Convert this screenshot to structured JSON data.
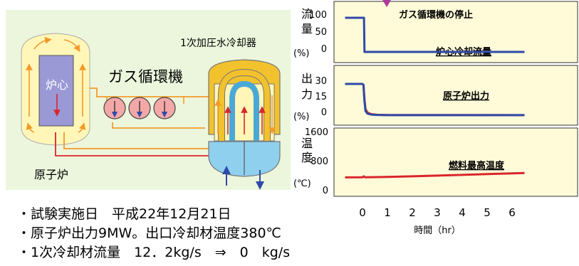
{
  "diagram": {
    "reactor_label": "原子炉",
    "core_label": "炉心",
    "circulator_label": "ガス循環機",
    "cooler_label": "1次加圧水冷却器"
  },
  "notes": [
    "・試験実施日　平成22年12月21日",
    "・原子炉出力9MW。出口冷却材温度380℃",
    "・1次冷却材流量　12．2kg/s　⇒　0　kg/s"
  ],
  "panels": {
    "flow": {
      "ylabel_lines": [
        "流",
        "量",
        "(%)"
      ],
      "ticks": [
        "100",
        "50",
        "0"
      ],
      "event_label": "ガス循環機の停止",
      "series_label": "炉心冷却流量"
    },
    "power": {
      "ylabel_lines": [
        "出",
        "力",
        "(%)"
      ],
      "ticks": [
        "30",
        "15",
        "0"
      ],
      "series_label": "原子炉出力"
    },
    "temp": {
      "ylabel_lines": [
        "温",
        "度",
        "(℃)"
      ],
      "ticks": [
        "1600",
        "800",
        "0"
      ],
      "series_label": "燃料最高温度"
    }
  },
  "x_axis": {
    "ticks": [
      "0",
      "1",
      "2",
      "3",
      "4",
      "5",
      "6"
    ],
    "label": "時間（hr）"
  },
  "colors": {
    "panel_bg": "#fffbd9",
    "diagram_bg": "#ecf6dc",
    "flow_line": "#2f4aa8",
    "power_line": "#d9262b",
    "temp_line": "#d9262b",
    "event_marker": "#b0389a"
  },
  "chart_data": {
    "type": "line",
    "x_unit": "hr",
    "xlim": [
      -0.7,
      6.5
    ],
    "x_ticks": [
      0,
      1,
      2,
      3,
      4,
      5,
      6
    ],
    "panels": [
      {
        "name": "flow",
        "ylim": [
          0,
          100
        ],
        "y_ticks": [
          0,
          50,
          100
        ],
        "series": [
          {
            "name": "炉心冷却流量",
            "color": "#2f4aa8",
            "x": [
              -0.7,
              0.0,
              0.06,
              0.08,
              6.5
            ],
            "y": [
              100,
              100,
              100,
              0,
              0
            ]
          }
        ]
      },
      {
        "name": "power",
        "ylim": [
          0,
          30
        ],
        "y_ticks": [
          0,
          15,
          30
        ],
        "series": [
          {
            "name": "原子炉出力",
            "color": "#d9262b",
            "x": [
              -0.7,
              0.0,
              0.04,
              0.08,
              0.12,
              0.2,
              0.35,
              0.6,
              1.0,
              6.5
            ],
            "y": [
              30,
              30,
              29,
              15,
              6,
              2.5,
              1,
              0.4,
              0.2,
              0.1
            ]
          },
          {
            "name": "",
            "color": "#2f4aa8",
            "x": [
              -0.7,
              0.0,
              0.04,
              0.08,
              0.12,
              0.2,
              0.35,
              0.6,
              1.0,
              6.5
            ],
            "y": [
              30,
              30,
              29,
              13,
              4,
              1.5,
              0.6,
              0.3,
              0.1,
              0.1
            ]
          }
        ]
      },
      {
        "name": "temp",
        "ylim": [
          0,
          1600
        ],
        "y_ticks": [
          0,
          800,
          1600
        ],
        "series": [
          {
            "name": "燃料最高温度",
            "color": "#d9262b",
            "x": [
              -0.7,
              0.0,
              0.05,
              0.1,
              1,
              2,
              3,
              4,
              5,
              6,
              6.5
            ],
            "y": [
              440,
              445,
              470,
              445,
              455,
              470,
              490,
              510,
              530,
              550,
              560
            ]
          }
        ]
      }
    ]
  }
}
